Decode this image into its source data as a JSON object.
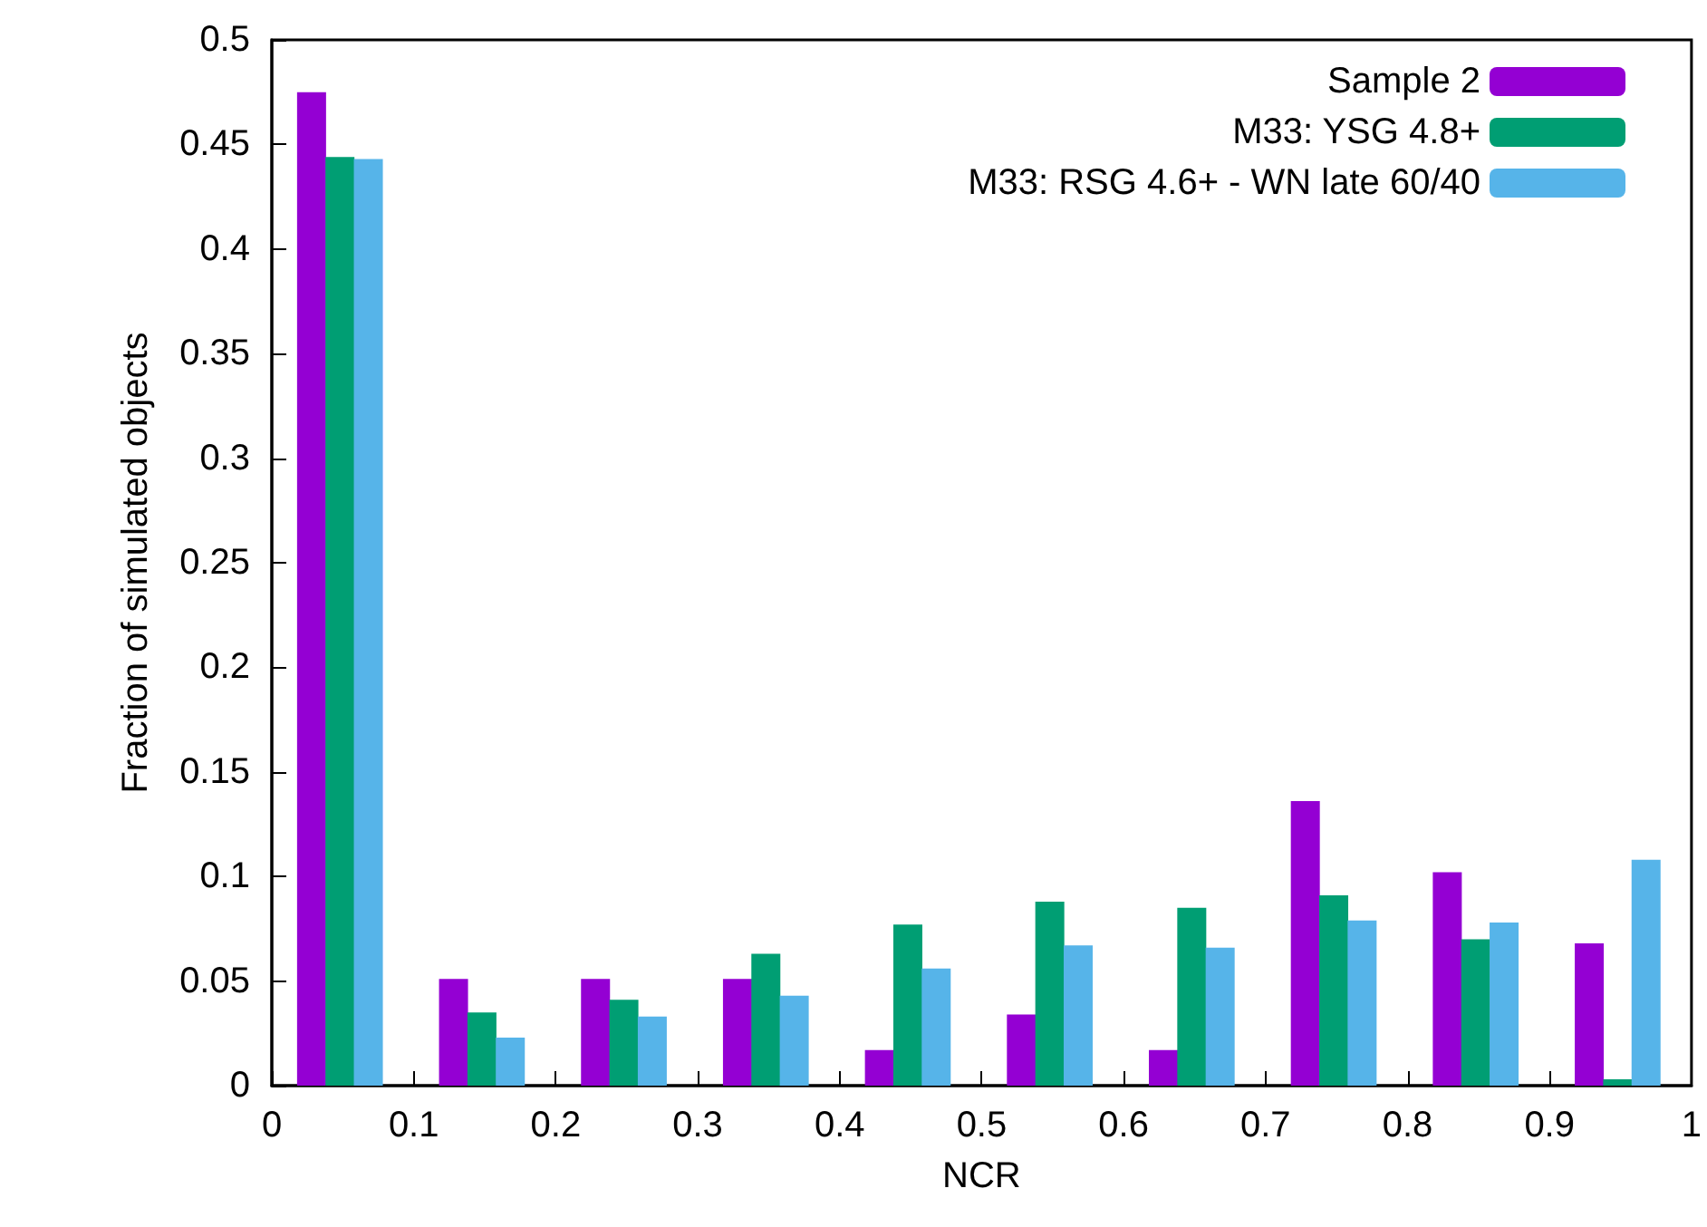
{
  "chart_data": {
    "type": "bar",
    "xlabel": "NCR",
    "ylabel": "Fraction of simulated objects",
    "xlim": [
      0,
      1
    ],
    "xticks": [
      0,
      0.1,
      0.2,
      0.3,
      0.4,
      0.5,
      0.6,
      0.7,
      0.8,
      0.9,
      1
    ],
    "ylim": [
      0,
      0.5
    ],
    "yticks": [
      0,
      0.05,
      0.1,
      0.15,
      0.2,
      0.25,
      0.3,
      0.35,
      0.4,
      0.45,
      0.5
    ],
    "grid": false,
    "legend": "top right",
    "series": [
      {
        "name": "Sample 2",
        "color": "#9400d3",
        "x": [
          0.028,
          0.128,
          0.228,
          0.328,
          0.428,
          0.528,
          0.628,
          0.728,
          0.828,
          0.928
        ],
        "values": [
          0.475,
          0.051,
          0.051,
          0.051,
          0.017,
          0.034,
          0.017,
          0.136,
          0.102,
          0.068
        ]
      },
      {
        "name": "M33: YSG 4.8+",
        "color": "#009e73",
        "x": [
          0.048,
          0.148,
          0.248,
          0.348,
          0.448,
          0.548,
          0.648,
          0.748,
          0.848,
          0.948
        ],
        "values": [
          0.444,
          0.035,
          0.041,
          0.063,
          0.077,
          0.088,
          0.085,
          0.091,
          0.07,
          0.003
        ]
      },
      {
        "name": "M33: RSG 4.6+ - WN late 60/40",
        "color": "#56b4e9",
        "x": [
          0.068,
          0.168,
          0.268,
          0.368,
          0.468,
          0.568,
          0.668,
          0.768,
          0.868,
          0.968
        ],
        "values": [
          0.443,
          0.023,
          0.033,
          0.043,
          0.056,
          0.067,
          0.066,
          0.079,
          0.078,
          0.108
        ]
      }
    ]
  }
}
